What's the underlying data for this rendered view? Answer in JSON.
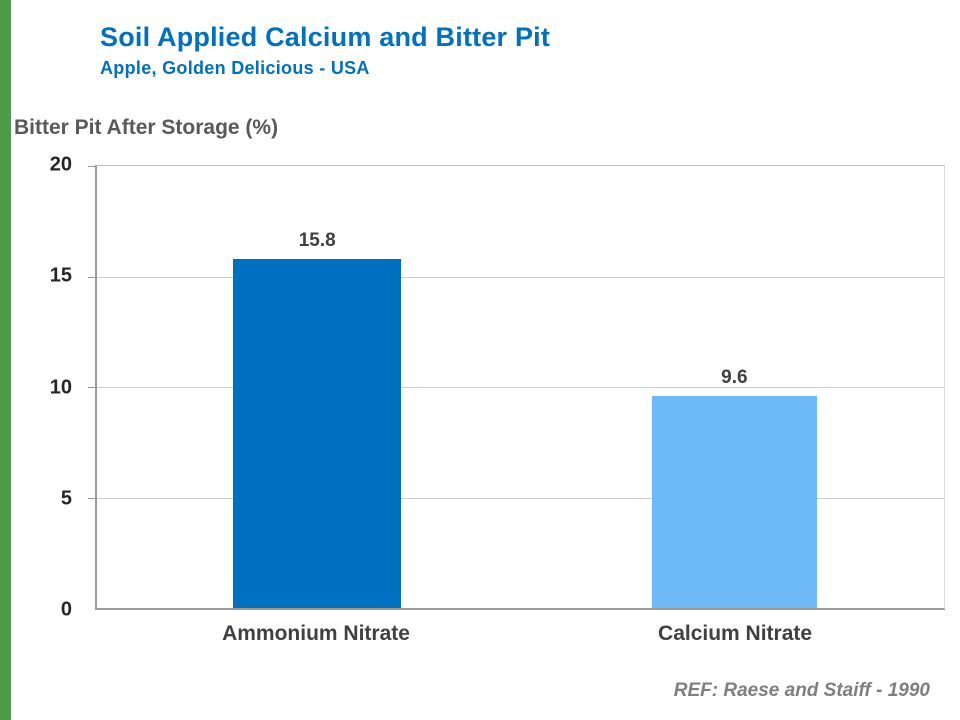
{
  "accent": {
    "green_stripe": "#4e9b47",
    "title_blue": "#0070C0"
  },
  "header": {
    "title": "Soil Applied Calcium and Bitter Pit",
    "subtitle": "Apple, Golden Delicious - USA"
  },
  "chart_data": {
    "type": "bar",
    "title": "Soil Applied Calcium and Bitter Pit",
    "subtitle": "Apple, Golden Delicious - USA",
    "ylabel": "Bitter Pit After Storage (%)",
    "categories": [
      "Ammonium Nitrate",
      "Calcium Nitrate"
    ],
    "values": [
      15.8,
      9.6
    ],
    "value_labels": [
      "15.8",
      "9.6"
    ],
    "bar_colors": [
      "#0070C0",
      "#6EB9F7"
    ],
    "ylim": [
      0,
      20
    ],
    "yticks": [
      0,
      5,
      10,
      15,
      20
    ],
    "grid": true,
    "legend": false
  },
  "footer": {
    "reference": "REF: Raese and Staiff - 1990"
  }
}
